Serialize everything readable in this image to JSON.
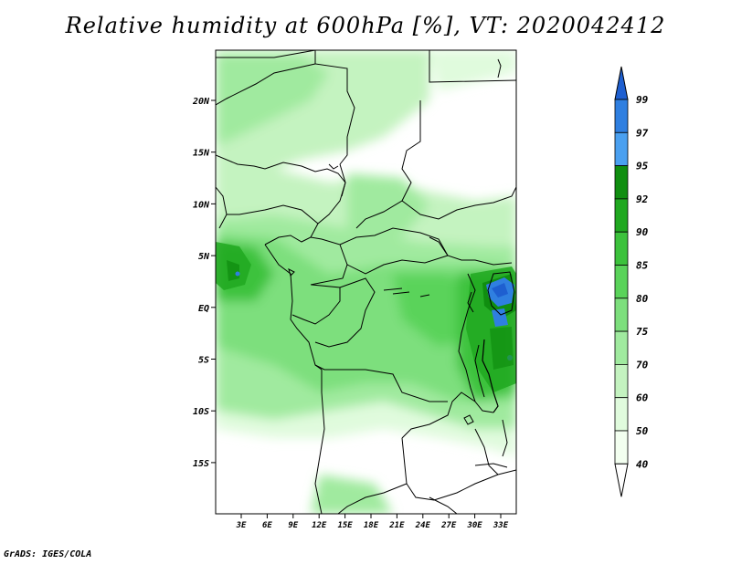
{
  "title": "Relative humidity at 600hPa [%], VT: 2020042412",
  "credit": "GrADS: IGES/COLA",
  "map": {
    "lat_labels": [
      "20N",
      "15N",
      "10N",
      "5N",
      "EQ",
      "5S",
      "10S",
      "15S"
    ],
    "lon_labels": [
      "3E",
      "6E",
      "9E",
      "12E",
      "15E",
      "18E",
      "21E",
      "24E",
      "27E",
      "30E",
      "33E"
    ]
  },
  "colorbar": {
    "labels": [
      "99",
      "97",
      "95",
      "92",
      "90",
      "85",
      "80",
      "75",
      "70",
      "60",
      "50",
      "40"
    ],
    "colors": [
      "#1e5fd0",
      "#2f7fe0",
      "#4aa0f0",
      "#108e10",
      "#20a820",
      "#3cc23c",
      "#5ad35a",
      "#7ddf7d",
      "#a0ea9f",
      "#c4f3c0",
      "#e0fbdd",
      "#f3fff0"
    ]
  }
}
